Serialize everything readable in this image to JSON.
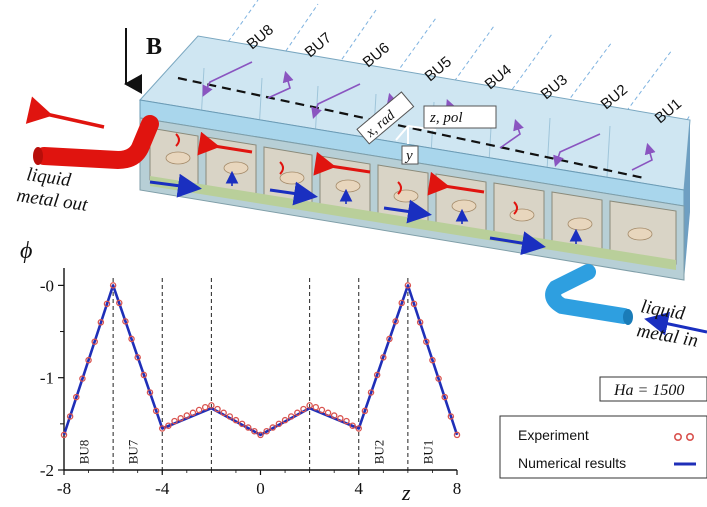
{
  "field_label": "B",
  "blanket_units": [
    "BU8",
    "BU7",
    "BU6",
    "BU5",
    "BU4",
    "BU3",
    "BU2",
    "BU1"
  ],
  "axes_labels": {
    "x_rad": "x, rad",
    "z_pol": "z, pol",
    "y": "y"
  },
  "outlet": {
    "line1": "liquid",
    "line2": "metal out"
  },
  "inlet": {
    "line1": "liquid",
    "line2": "metal in"
  },
  "hartmann": "Ha = 1500",
  "colors": {
    "experiment": "#d9534f",
    "numerical": "#1f2fb8",
    "outlet_pipe": "#e0140f",
    "inlet_pipe": "#2e9fe0",
    "flow_arrow_purple": "#8a55c0"
  },
  "chart_data": {
    "type": "line",
    "ylabel": "ϕ",
    "xlabel": "z",
    "xlim": [
      -8,
      8
    ],
    "ylim": [
      -2,
      0.08
    ],
    "x_ticks": [
      "-8",
      "-4",
      "0",
      "4",
      "8"
    ],
    "y_ticks": [
      "-0",
      "-1",
      "-2"
    ],
    "region_labels": [
      {
        "text": "BU8",
        "x": -7
      },
      {
        "text": "BU7",
        "x": -5
      },
      {
        "text": "BU2",
        "x": 5
      },
      {
        "text": "BU1",
        "x": 7
      }
    ],
    "divider_lines": [
      -6,
      -4,
      -2,
      2,
      4,
      6
    ],
    "legend": {
      "experiment": "Experiment",
      "numerical": "Numerical results",
      "position": "bottom-right"
    },
    "series": [
      {
        "name": "Numerical results",
        "x": [
          -8,
          -6,
          -4,
          -2,
          0,
          2,
          4,
          6,
          8
        ],
        "y": [
          -1.62,
          0.0,
          -1.55,
          -1.33,
          -1.62,
          -1.33,
          -1.55,
          0.0,
          -1.62
        ]
      },
      {
        "name": "Experiment",
        "x": [
          -8,
          -7.75,
          -7.5,
          -7.25,
          -7,
          -6.75,
          -6.5,
          -6.25,
          -6,
          -5.75,
          -5.5,
          -5.25,
          -5,
          -4.75,
          -4.5,
          -4.25,
          -4,
          -3.75,
          -3.5,
          -3.25,
          -3,
          -2.75,
          -2.5,
          -2.25,
          -2,
          -1.75,
          -1.5,
          -1.25,
          -1,
          -0.75,
          -0.5,
          -0.25,
          0,
          0.25,
          0.5,
          0.75,
          1,
          1.25,
          1.5,
          1.75,
          2,
          2.25,
          2.5,
          2.75,
          3,
          3.25,
          3.5,
          3.75,
          4,
          4.25,
          4.5,
          4.75,
          5,
          5.25,
          5.5,
          5.75,
          6,
          6.25,
          6.5,
          6.75,
          7,
          7.25,
          7.5,
          7.75,
          8
        ],
        "y": [
          -1.62,
          -1.42,
          -1.21,
          -1.01,
          -0.81,
          -0.61,
          -0.4,
          -0.2,
          0.0,
          -0.19,
          -0.39,
          -0.58,
          -0.78,
          -0.97,
          -1.16,
          -1.36,
          -1.55,
          -1.52,
          -1.47,
          -1.44,
          -1.41,
          -1.38,
          -1.35,
          -1.32,
          -1.3,
          -1.34,
          -1.38,
          -1.42,
          -1.46,
          -1.5,
          -1.54,
          -1.58,
          -1.62,
          -1.58,
          -1.54,
          -1.5,
          -1.46,
          -1.42,
          -1.38,
          -1.34,
          -1.3,
          -1.32,
          -1.35,
          -1.38,
          -1.41,
          -1.44,
          -1.47,
          -1.52,
          -1.55,
          -1.36,
          -1.16,
          -0.97,
          -0.78,
          -0.58,
          -0.39,
          -0.19,
          0.0,
          -0.2,
          -0.4,
          -0.61,
          -0.81,
          -1.01,
          -1.21,
          -1.42,
          -1.62
        ]
      }
    ]
  }
}
